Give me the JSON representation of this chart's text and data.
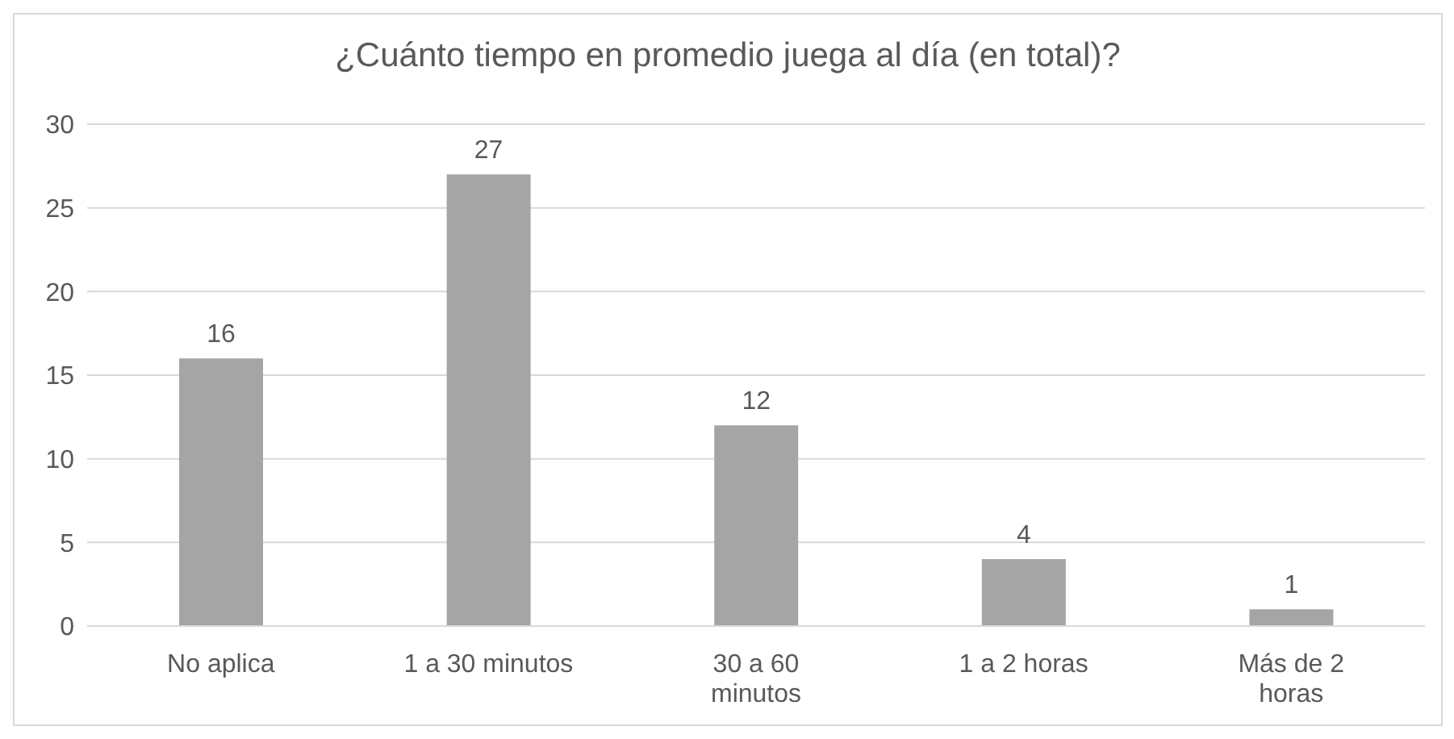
{
  "chart_data": {
    "type": "bar",
    "title": "¿Cuánto tiempo en promedio juega al día (en total)?",
    "categories": [
      "No aplica",
      "1 a 30 minutos",
      "30 a 60 minutos",
      "1 a 2 horas",
      "Más de 2 horas"
    ],
    "values": [
      16,
      27,
      12,
      4,
      1
    ],
    "color": "#a5a5a5",
    "ylim": [
      0,
      30
    ],
    "yticks": [
      0,
      5,
      10,
      15,
      20,
      25,
      30
    ],
    "grid": "y",
    "data_labels": true
  }
}
